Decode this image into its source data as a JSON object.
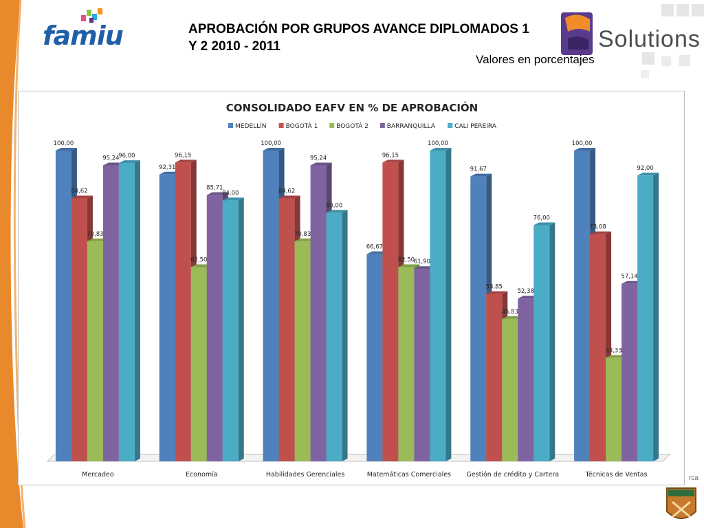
{
  "header": {
    "title_line1": "APROBACIÓN POR GRUPOS AVANCE DIPLOMADOS 1",
    "title_line2": "Y 2  2010 - 2011",
    "subtitle": "Valores en porcentajes"
  },
  "logos": {
    "left_brand": "famiu",
    "right_brand": "Solutions",
    "bottom_partial_text": "rca",
    "bottom_brand": "CEIPA"
  },
  "colors": {
    "accent_orange": "#e8892c",
    "famiu_blue": "#1f5fa8"
  },
  "chart_data": {
    "type": "bar",
    "title": "CONSOLIDADO EAFV EN % DE APROBACIÓN",
    "categories": [
      "Mercadeo",
      "Economía",
      "Habilidades Gerenciales",
      "Matemáticas Comerciales",
      "Gestión de crédito y Cartera",
      "Técnicas de Ventas"
    ],
    "series": [
      {
        "name": "MEDELLÍN",
        "color": "#4f81bd",
        "values": [
          100.0,
          92.31,
          100.0,
          66.67,
          91.67,
          100.0
        ],
        "labels": [
          "100,00",
          "92,31",
          "100,00",
          "66,67",
          "91,67",
          "100,00"
        ]
      },
      {
        "name": "BOGOTÁ 1",
        "color": "#c0504d",
        "values": [
          84.62,
          96.15,
          84.62,
          96.15,
          53.85,
          73.08
        ],
        "labels": [
          "84,62",
          "96,15",
          "84,62",
          "96,15",
          "53,85",
          "73,08"
        ]
      },
      {
        "name": "BOGOTÁ 2",
        "color": "#9bbb59",
        "values": [
          70.83,
          62.5,
          70.83,
          62.5,
          45.83,
          33.33
        ],
        "labels": [
          "70,83",
          "62,50",
          "70,83",
          "62,50",
          "45,83",
          "33,33"
        ]
      },
      {
        "name": "BARRANQUILLA",
        "color": "#8064a2",
        "values": [
          95.24,
          85.71,
          95.24,
          61.9,
          52.38,
          57.14
        ],
        "labels": [
          "95,24",
          "85,71",
          "95,24",
          "61,90",
          "52,38",
          "57,14"
        ]
      },
      {
        "name": "CALI PEREIRA",
        "color": "#4bacc6",
        "values": [
          96.0,
          84.0,
          80.0,
          100.0,
          76.0,
          92.0
        ],
        "labels": [
          "96,00",
          "84,00",
          "80,00",
          "100,00",
          "76,00",
          "92,00"
        ]
      }
    ],
    "ylim": [
      0,
      100
    ],
    "legend_position": "top",
    "grid": false,
    "style": "3d-clustered-column"
  }
}
